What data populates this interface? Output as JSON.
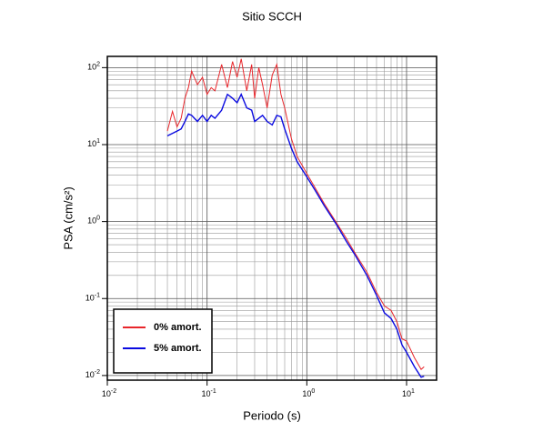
{
  "chart_data": {
    "type": "line",
    "title": "Sitio SCCH",
    "xlabel": "Periodo (s)",
    "ylabel": "PSA (cm/s²)",
    "xscale": "log",
    "yscale": "log",
    "grid": true,
    "legend": "lower left",
    "xlim": [
      0.01,
      20
    ],
    "ylim": [
      0.0087,
      140
    ],
    "xticks": [
      {
        "value": 0.01,
        "label": "10",
        "exponent": "-2"
      },
      {
        "value": 0.1,
        "label": "10",
        "exponent": "-1"
      },
      {
        "value": 1,
        "label": "10",
        "exponent": "0"
      },
      {
        "value": 10,
        "label": "10",
        "exponent": "1"
      }
    ],
    "yticks": [
      {
        "value": 0.01,
        "label": "10",
        "exponent": "-2"
      },
      {
        "value": 0.1,
        "label": "10",
        "exponent": "-1"
      },
      {
        "value": 1,
        "label": "10",
        "exponent": "0"
      },
      {
        "value": 10,
        "label": "10",
        "exponent": "1"
      },
      {
        "value": 100,
        "label": "10",
        "exponent": "2"
      }
    ],
    "xminorticks": [
      0.02,
      0.03,
      0.04,
      0.05,
      0.06,
      0.07,
      0.08,
      0.09,
      0.2,
      0.3,
      0.4,
      0.5,
      0.6,
      0.7,
      0.8,
      0.9,
      2,
      3,
      4,
      5,
      6,
      7,
      8,
      9
    ],
    "yminorticks": [
      0.02,
      0.03,
      0.04,
      0.05,
      0.06,
      0.07,
      0.08,
      0.09,
      0.2,
      0.3,
      0.4,
      0.5,
      0.6,
      0.7,
      0.8,
      0.9,
      2,
      3,
      4,
      5,
      6,
      7,
      8,
      9,
      20,
      30,
      40,
      50,
      60,
      70,
      80,
      90
    ],
    "x": [
      0.04,
      0.045,
      0.05,
      0.055,
      0.06,
      0.065,
      0.07,
      0.08,
      0.09,
      0.1,
      0.11,
      0.12,
      0.14,
      0.16,
      0.18,
      0.2,
      0.22,
      0.25,
      0.28,
      0.3,
      0.33,
      0.36,
      0.4,
      0.45,
      0.5,
      0.55,
      0.6,
      0.7,
      0.8,
      1.0,
      1.2,
      1.5,
      2,
      2.5,
      3,
      4,
      5,
      6,
      7,
      8,
      9,
      10,
      12,
      14,
      15
    ],
    "series": [
      {
        "name": "0% amort.",
        "color": "#e8262b",
        "values": [
          15,
          27,
          17,
          22,
          40,
          55,
          90,
          60,
          75,
          45,
          55,
          50,
          110,
          55,
          120,
          75,
          130,
          50,
          110,
          40,
          100,
          60,
          30,
          80,
          110,
          45,
          30,
          12,
          7,
          4.2,
          2.8,
          1.7,
          0.95,
          0.6,
          0.4,
          0.22,
          0.12,
          0.08,
          0.07,
          0.05,
          0.03,
          0.028,
          0.017,
          0.012,
          0.013
        ]
      },
      {
        "name": "5% amort.",
        "color": "#0a0ae0",
        "values": [
          13,
          14,
          15,
          16,
          20,
          25,
          24,
          20,
          24,
          20,
          24,
          22,
          28,
          45,
          40,
          35,
          45,
          30,
          28,
          20,
          22,
          24,
          20,
          18,
          24,
          23,
          16,
          9,
          6,
          3.8,
          2.6,
          1.6,
          0.9,
          0.55,
          0.38,
          0.2,
          0.11,
          0.065,
          0.055,
          0.04,
          0.025,
          0.02,
          0.013,
          0.0095,
          0.0098
        ]
      }
    ]
  }
}
